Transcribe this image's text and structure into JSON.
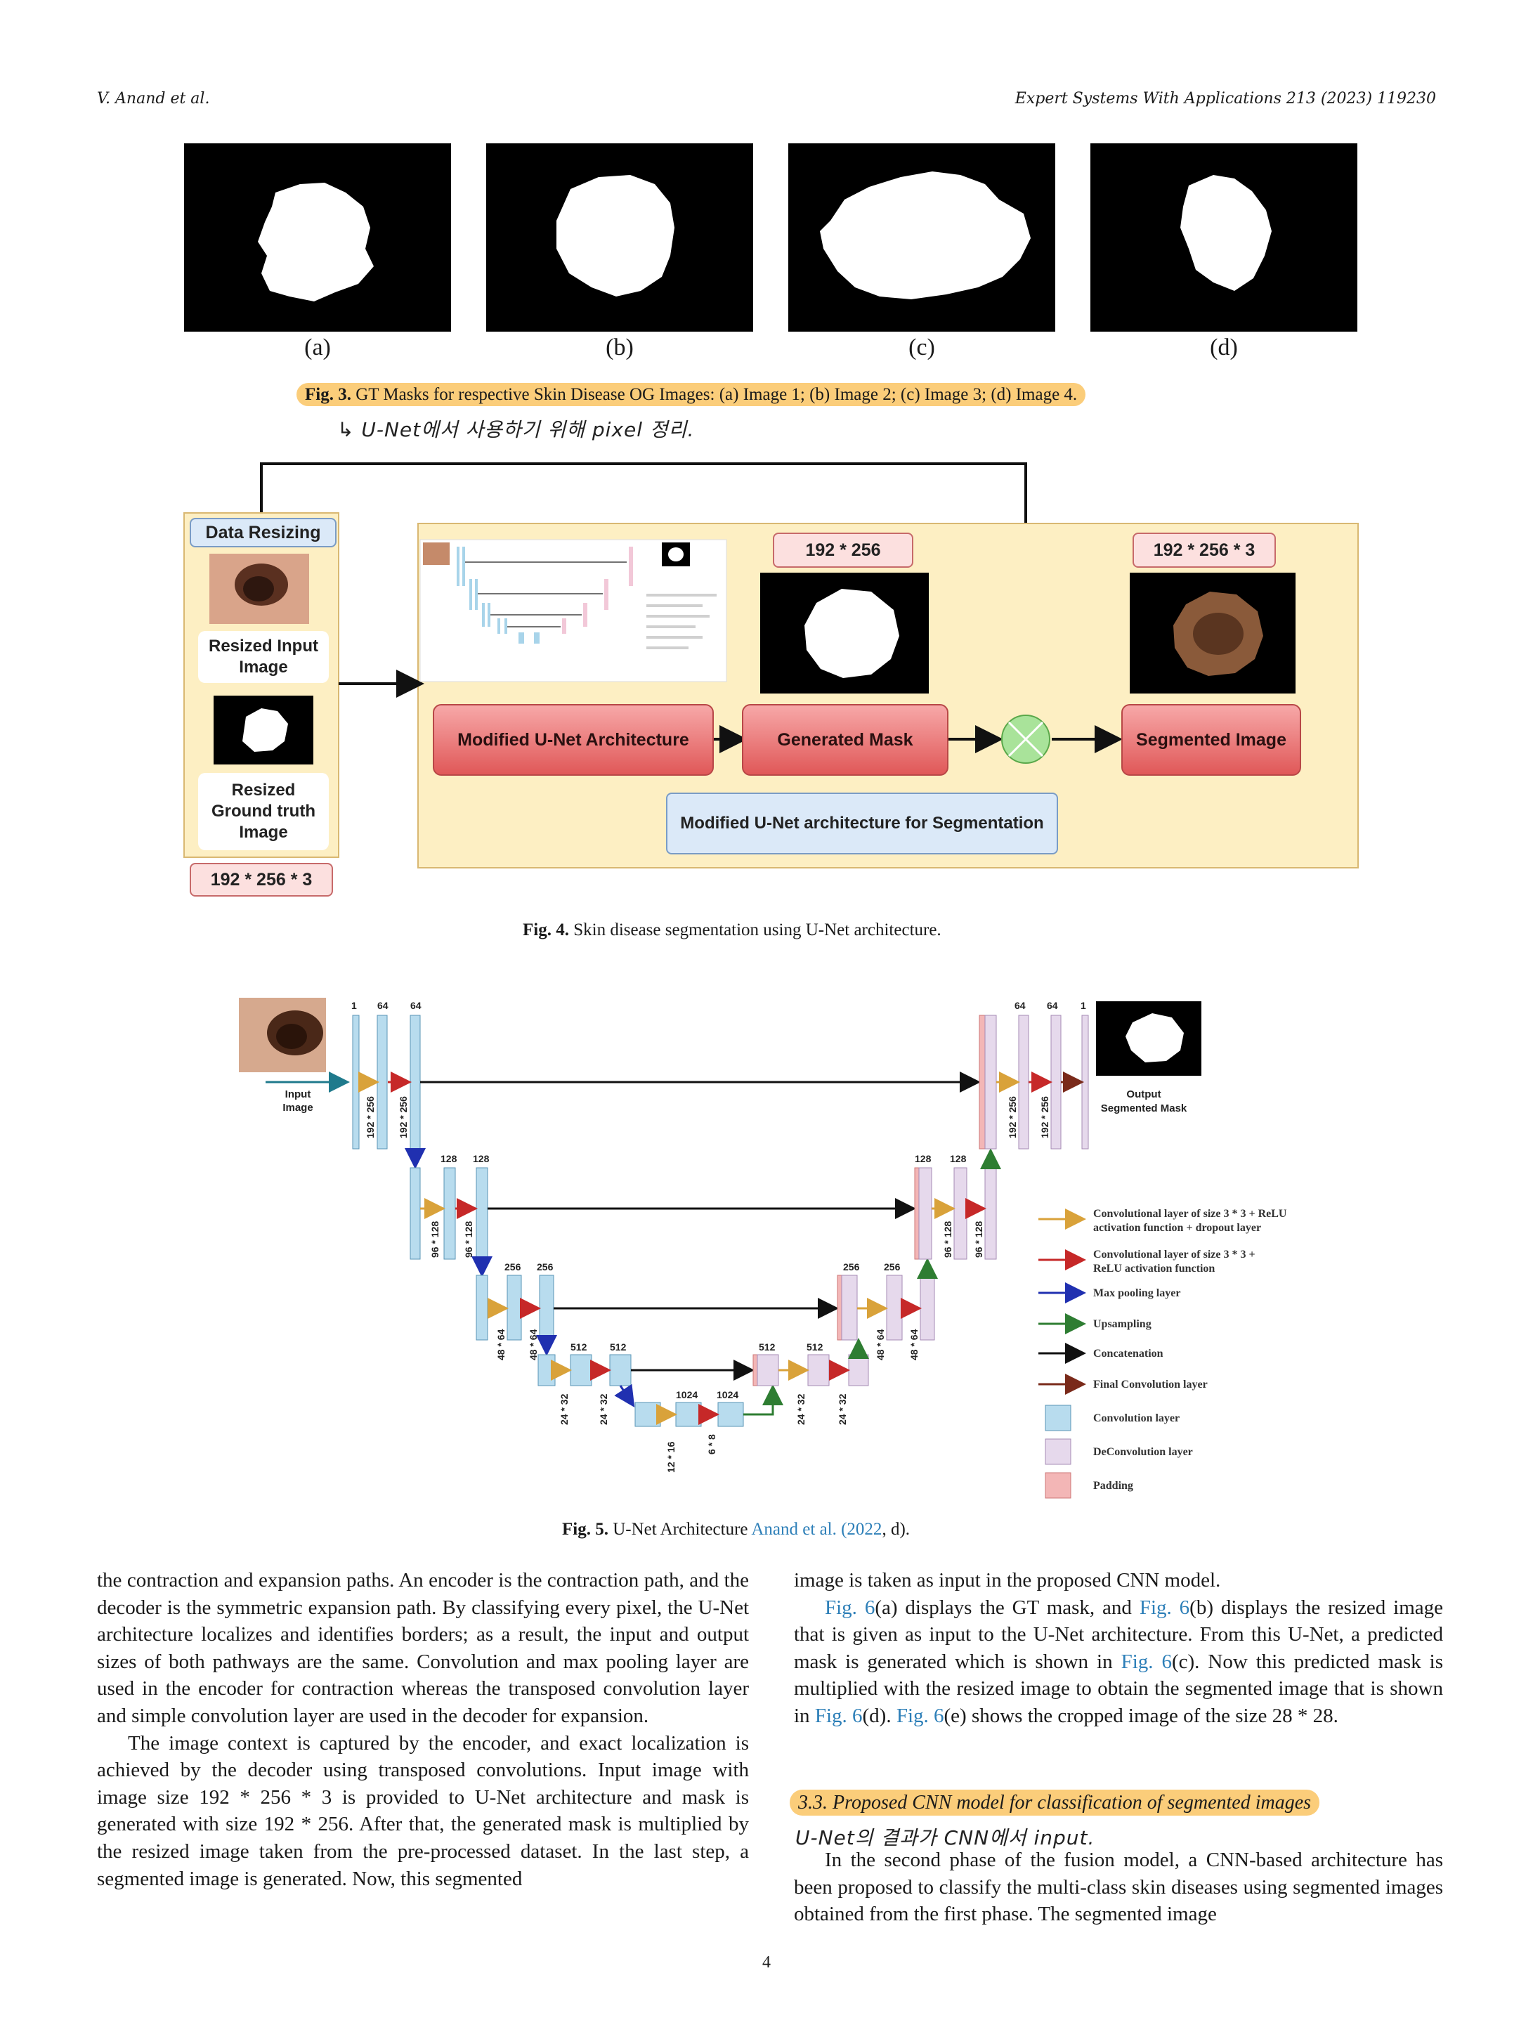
{
  "header": {
    "authors": "V. Anand et al.",
    "journal": "Expert Systems With Applications 213 (2023) 119230"
  },
  "fig3": {
    "sublabels": [
      "(a)",
      "(b)",
      "(c)",
      "(d)"
    ],
    "caption_label": "Fig. 3.",
    "caption_text": "GT Masks for respective Skin Disease OG Images: (a) Image 1; (b) Image 2; (c) Image 3; (d) Image 4.",
    "handwritten_note": "↳ U-Net에서 사용하기 위해 pixel 정리."
  },
  "fig4": {
    "data_resizing": "Data Resizing",
    "resized_input_line1": "Resized Input",
    "resized_input_line2": "Image",
    "resized_gt_line1": "Resized",
    "resized_gt_line2": "Ground truth",
    "resized_gt_line3": "Image",
    "left_size": "192 * 256 * 3",
    "mask_size": "192 * 256",
    "segmented_size": "192 * 256 * 3",
    "modified_unet": "Modified U-Net Architecture",
    "generated_mask": "Generated Mask",
    "segmented_image": "Segmented Image",
    "bottom_label": "Modified U-Net architecture for Segmentation",
    "caption_label": "Fig. 4.",
    "caption_text": "Skin disease segmentation using U-Net architecture."
  },
  "fig5": {
    "input_label_1": "Input",
    "input_label_2": "Image",
    "output_label_1": "Output",
    "output_label_2": "Segmented Mask",
    "channels": {
      "c1": "1",
      "c64a": "64",
      "c64b": "64",
      "c128a": "128",
      "c128b": "128",
      "c256a": "256",
      "c256b": "256",
      "c512a": "512",
      "c512b": "512",
      "c1024a": "1024",
      "c1024b": "1024",
      "d512a": "512",
      "d512b": "512",
      "d256a": "256",
      "d256b": "256",
      "d128a": "128",
      "d128b": "128",
      "d64a": "64",
      "d64b": "64",
      "d1": "1"
    },
    "sizes": {
      "s192a": "192 * 256",
      "s192b": "192 * 256",
      "s96a": "96 * 128",
      "s96b": "96 * 128",
      "s48a": "48 * 64",
      "s48b": "48 * 64",
      "s24a": "24 * 32",
      "s24b": "24 * 32",
      "s12": "12 * 16",
      "s6": "6 * 8",
      "u24a": "24 * 32",
      "u24b": "24 * 32",
      "u48a": "48 * 64",
      "u48b": "48 * 64",
      "u96a": "96 * 128",
      "u96b": "96 * 128",
      "u192a": "192 * 256",
      "u192b": "192 * 256"
    },
    "legend": {
      "l1a": "Convolutional layer of size 3 * 3 + ReLU",
      "l1b": "activation function + dropout layer",
      "l2a": "Convolutional layer of size 3 * 3 +",
      "l2b": "ReLU activation function",
      "l3": "Max pooling layer",
      "l4": "Upsampling",
      "l5": "Concatenation",
      "l6": "Final Convolution layer",
      "l7": "Convolution layer",
      "l8": "DeConvolution layer",
      "l9": "Padding"
    },
    "caption_label": "Fig. 5.",
    "caption_text": "U-Net Architecture",
    "caption_link": "Anand et al. (2022",
    "caption_tail": ", d)."
  },
  "left_column": {
    "p1": "the contraction and expansion paths. An encoder is the contraction path, and the decoder is the symmetric expansion path. By classifying every pixel, the U-Net architecture localizes and identifies borders; as a result, the input and output sizes of both pathways are the same. Convolution and max pooling layer are used in the encoder for contraction whereas the transposed convolution layer and simple convolution layer are used in the decoder for expansion.",
    "p2": "The image context is captured by the encoder, and exact localization is achieved by the decoder using transposed convolutions. Input image with image size 192 * 256 * 3 is provided to U-Net architecture and mask is generated with size 192 * 256. After that, the generated mask is multiplied by the resized image taken from the pre-processed dataset. In the last step, a segmented image is generated. Now, this segmented"
  },
  "right_column": {
    "p1": "image is taken as input in the proposed CNN model.",
    "p2_link1": "Fig. 6",
    "p2_a": "(a) displays the GT mask, and ",
    "p2_link2": "Fig. 6",
    "p2_b": "(b) displays the resized image that is given as input to the U-Net architecture. From this U-Net, a predicted mask is generated which is shown in ",
    "p2_link3": "Fig. 6",
    "p2_c": "(c). Now this predicted mask is multiplied with the resized image to obtain the segmented image that is shown in ",
    "p2_link4": "Fig. 6",
    "p2_d": "(d). ",
    "p2_link5": "Fig. 6",
    "p2_e": "(e) shows the cropped image of the size 28 * 28.",
    "section_heading": "3.3.  Proposed CNN model for classification of segmented images",
    "handwritten_note": "U-Net의 결과가 CNN에서 input.",
    "p3": "In the second phase of the fusion model, a CNN-based architecture has been proposed to classify the multi-class skin diseases using segmented images obtained from the first phase. The segmented image"
  },
  "page_number": "4",
  "colors": {
    "highlight": "#fbcd7a",
    "fig4_bg": "#fdefc3",
    "link": "#2d7fb8",
    "conv_blue": "#b8dcee",
    "deconv_purple": "#e6d9ec",
    "padding_red": "#f3b6b6"
  }
}
